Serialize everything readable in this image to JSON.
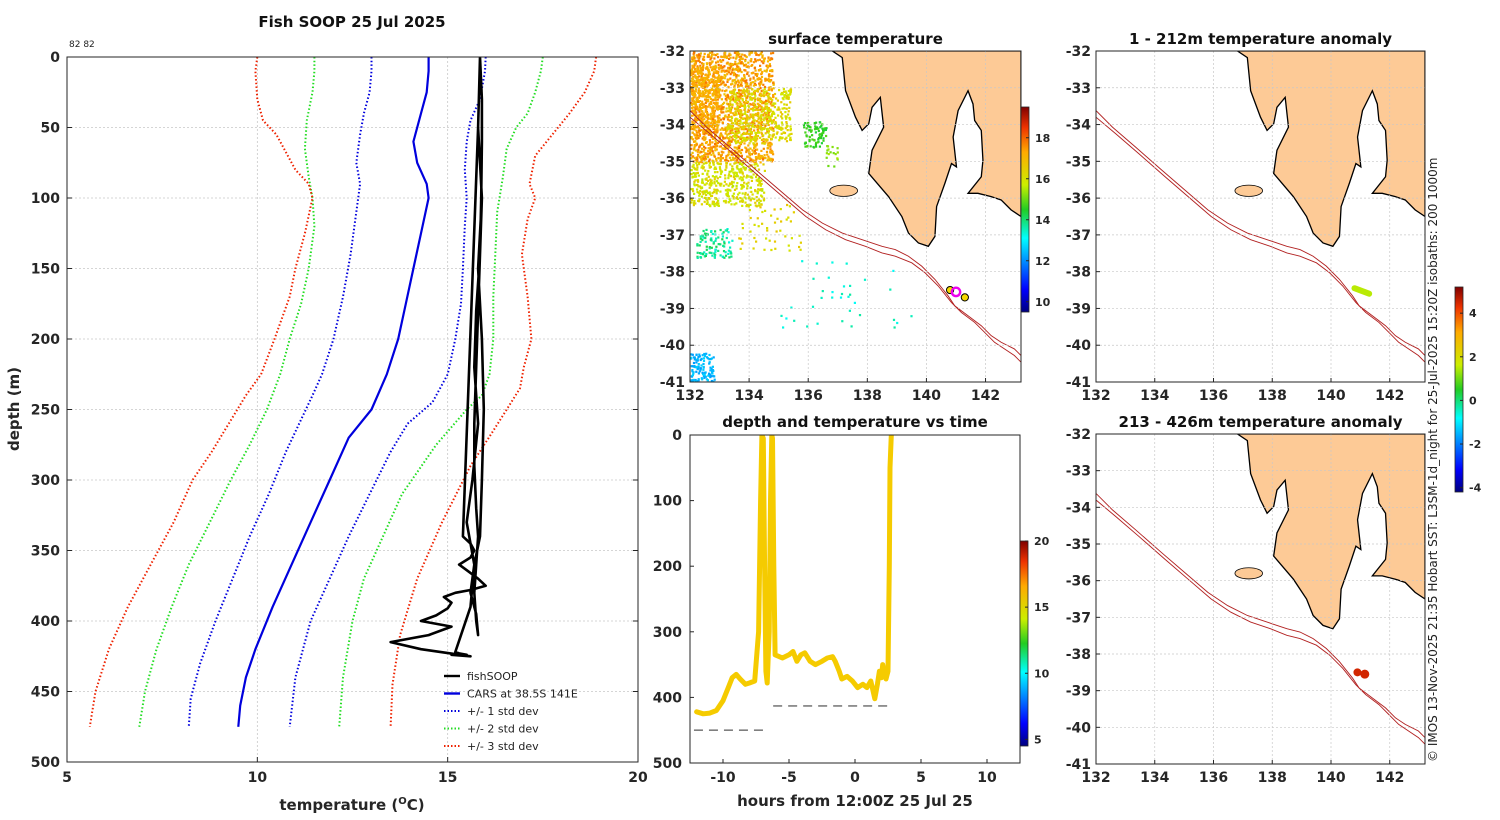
{
  "colors": {
    "land": "#fdca96",
    "coast": "#000000",
    "isobath": "#b22222",
    "grid": "#c8c8c8",
    "fish": "#000000",
    "cars": "#0000dd",
    "std1": "#0000dd",
    "std2": "#22dd22",
    "std3": "#ee2200",
    "trace": "#f5cb00",
    "dash": "#7f7f7f"
  },
  "chart_data": [
    {
      "type": "line",
      "name": "profile",
      "title": "Fish SOOP 25 Jul 2025",
      "corner_label": "82 82",
      "xlabel_main": "temperature (",
      "xlabel_sup": "O",
      "xlabel_end": "C)",
      "ylabel": "depth (m)",
      "xlim": [
        5,
        20
      ],
      "ylim": [
        500,
        0
      ],
      "xticks": [
        5,
        10,
        15,
        20
      ],
      "yticks": [
        0,
        50,
        100,
        150,
        200,
        250,
        300,
        350,
        400,
        450,
        500
      ],
      "legend": [
        "fishSOOP",
        "CARS at 38.5S 141E",
        "+/- 1 std dev",
        "+/- 2 std dev",
        "+/- 3 std dev"
      ],
      "series": [
        {
          "name": "CARS at 38.5S 141E",
          "color_key": "cars",
          "style": "solid",
          "x": [
            14.5,
            14.5,
            14.45,
            14.3,
            14.1,
            14.2,
            14.45,
            14.5,
            14.3,
            14.1,
            13.9,
            13.7,
            13.4,
            13.0,
            12.4,
            11.9,
            11.4,
            10.9,
            10.4,
            9.95,
            9.7,
            9.55,
            9.5
          ],
          "depth": [
            0,
            10,
            25,
            40,
            60,
            75,
            90,
            100,
            125,
            150,
            175,
            200,
            225,
            250,
            270,
            300,
            330,
            360,
            390,
            420,
            440,
            460,
            475
          ]
        },
        {
          "name": "cars_minus_1",
          "color_key": "std1",
          "style": "dotted",
          "x": [
            13.0,
            13.0,
            12.95,
            12.8,
            12.7,
            12.6,
            12.7,
            12.6,
            12.45,
            12.25,
            12.0,
            11.7,
            11.45,
            11.1,
            10.75,
            10.3,
            9.8,
            9.35,
            8.9,
            8.5,
            8.25,
            8.2
          ],
          "depth": [
            0,
            10,
            25,
            40,
            55,
            75,
            90,
            110,
            140,
            170,
            200,
            225,
            240,
            260,
            280,
            310,
            340,
            370,
            400,
            430,
            455,
            475
          ]
        },
        {
          "name": "cars_plus_1",
          "color_key": "std1",
          "style": "dotted",
          "x": [
            16.0,
            15.98,
            15.85,
            15.6,
            15.5,
            15.45,
            15.5,
            15.45,
            15.4,
            15.35,
            15.2,
            15.0,
            14.6,
            13.95,
            13.5,
            12.95,
            12.4,
            11.9,
            11.4,
            11.0,
            10.85
          ],
          "depth": [
            0,
            10,
            30,
            45,
            60,
            80,
            100,
            120,
            150,
            175,
            200,
            225,
            245,
            260,
            280,
            310,
            340,
            370,
            400,
            440,
            475
          ]
        },
        {
          "name": "cars_minus_2",
          "color_key": "std2",
          "style": "dotted",
          "x": [
            11.5,
            11.5,
            11.45,
            11.3,
            11.25,
            11.35,
            11.45,
            11.5,
            11.35,
            11.15,
            10.85,
            10.6,
            10.25,
            9.8,
            9.3,
            8.75,
            8.2,
            7.75,
            7.35,
            7.05,
            6.9
          ],
          "depth": [
            0,
            10,
            25,
            45,
            65,
            85,
            100,
            120,
            150,
            175,
            200,
            225,
            250,
            275,
            300,
            330,
            360,
            390,
            420,
            450,
            475
          ]
        },
        {
          "name": "cars_plus_2",
          "color_key": "std2",
          "style": "dotted",
          "x": [
            17.5,
            17.45,
            17.3,
            17.1,
            16.8,
            16.55,
            16.45,
            16.3,
            16.25,
            16.2,
            16.2,
            16.1,
            15.9,
            15.5,
            14.7,
            13.8,
            13.3,
            12.8,
            12.5,
            12.25,
            12.15
          ],
          "depth": [
            0,
            10,
            25,
            40,
            50,
            65,
            85,
            110,
            140,
            170,
            200,
            225,
            240,
            250,
            275,
            310,
            340,
            370,
            400,
            440,
            475
          ]
        },
        {
          "name": "cars_minus_3",
          "color_key": "std3",
          "style": "dotted",
          "x": [
            10.0,
            9.95,
            10.0,
            10.15,
            10.5,
            10.8,
            11.0,
            11.35,
            11.45,
            11.25,
            11.0,
            10.85,
            10.45,
            10.1,
            9.7,
            9.25,
            8.8,
            8.3,
            7.8,
            7.2,
            6.6,
            6.1,
            5.75,
            5.6
          ],
          "depth": [
            0,
            10,
            30,
            45,
            55,
            70,
            80,
            90,
            100,
            125,
            150,
            170,
            200,
            225,
            240,
            260,
            280,
            300,
            330,
            360,
            390,
            420,
            450,
            475
          ]
        },
        {
          "name": "cars_plus_3",
          "color_key": "std3",
          "style": "dotted",
          "x": [
            18.9,
            18.85,
            18.6,
            18.2,
            17.75,
            17.3,
            17.15,
            17.3,
            17.1,
            16.95,
            17.1,
            17.2,
            17.0,
            16.9,
            16.55,
            16.2,
            15.6,
            14.85,
            14.2,
            13.75,
            13.55,
            13.5
          ],
          "depth": [
            0,
            10,
            25,
            40,
            55,
            70,
            90,
            100,
            115,
            140,
            170,
            200,
            220,
            235,
            250,
            265,
            290,
            330,
            370,
            410,
            445,
            475
          ]
        },
        {
          "name": "fishSOOP",
          "color_key": "fish",
          "style": "solid",
          "x": [
            15.85,
            15.9,
            15.9,
            15.88,
            15.85,
            15.8,
            15.75,
            15.7,
            15.7,
            15.75,
            15.8,
            15.75,
            15.7,
            15.75,
            15.8,
            15.75,
            15.6,
            15.7,
            15.85,
            15.9,
            15.95,
            15.9,
            15.8,
            15.9,
            15.8,
            15.4,
            15.6,
            15.7,
            15.6,
            15.3,
            15.55,
            15.8,
            16.0,
            15.6,
            15.2,
            14.9,
            15.1,
            15.0,
            14.7,
            14.3,
            15.1,
            14.5,
            13.5,
            14.3,
            15.6,
            15.1,
            15.5,
            15.3,
            15.2,
            15.6,
            15.7,
            15.5,
            15.65,
            15.8,
            15.7,
            15.75,
            15.85,
            15.9,
            15.8,
            15.85
          ],
          "depth": [
            0,
            30,
            60,
            100,
            140,
            180,
            220,
            260,
            290,
            320,
            340,
            360,
            380,
            400,
            410,
            395,
            380,
            360,
            340,
            300,
            250,
            200,
            150,
            100,
            50,
            340,
            345,
            350,
            355,
            360,
            365,
            370,
            375,
            378,
            380,
            383,
            387,
            391,
            396,
            400,
            404,
            410,
            415,
            420,
            425,
            424,
            424,
            423,
            422,
            390,
            360,
            330,
            300,
            260,
            220,
            180,
            140,
            100,
            50,
            0
          ]
        }
      ]
    },
    {
      "type": "heatmap",
      "name": "surface-temperature-map",
      "title": "surface temperature",
      "xlim": [
        132,
        143.2
      ],
      "ylim": [
        -41,
        -32
      ],
      "xticks": [
        132,
        134,
        136,
        138,
        140,
        142
      ],
      "yticks": [
        -32,
        -33,
        -34,
        -35,
        -36,
        -37,
        -38,
        -39,
        -40,
        -41
      ],
      "colorbar": {
        "range": [
          9.5,
          19.5
        ],
        "ticks": [
          10,
          12,
          14,
          16,
          18
        ]
      },
      "markers": [
        {
          "lon": 140.8,
          "lat": -38.5,
          "label": "start"
        },
        {
          "lon": 141.0,
          "lat": -38.55,
          "label": "position"
        },
        {
          "lon": 141.3,
          "lat": -38.7,
          "label": "end"
        }
      ]
    },
    {
      "type": "line",
      "name": "depth-time",
      "title": "depth and temperature vs time",
      "xlabel": "hours from 12:00Z 25 Jul 25",
      "xlim": [
        -12.5,
        12.5
      ],
      "ylim": [
        500,
        0
      ],
      "xticks": [
        -10,
        -5,
        0,
        5,
        10
      ],
      "yticks": [
        0,
        100,
        200,
        300,
        400,
        500
      ],
      "colorbar": {
        "range": [
          4.5,
          20
        ],
        "ticks": [
          5,
          10,
          15,
          20
        ]
      },
      "bottom_lines": [
        {
          "x": [
            -12.2,
            -6.8
          ],
          "depth": 450
        },
        {
          "x": [
            -6.2,
            2.8
          ],
          "depth": 413
        }
      ],
      "trace": {
        "hours": [
          -12.0,
          -11.5,
          -11.0,
          -10.5,
          -10.0,
          -9.6,
          -9.3,
          -9.0,
          -8.7,
          -8.3,
          -8.0,
          -7.6,
          -7.3,
          -7.15,
          -7.05,
          -6.95,
          -6.85,
          -6.75,
          -6.65,
          -6.5,
          -6.4,
          -6.3,
          -6.25,
          -6.15,
          -6.05,
          -5.5,
          -5.0,
          -4.7,
          -4.4,
          -4.1,
          -3.8,
          -3.4,
          -3.0,
          -2.5,
          -2.1,
          -1.7,
          -1.5,
          -1.2,
          -1.0,
          -0.6,
          -0.2,
          0.2,
          0.6,
          0.9,
          1.2,
          1.5,
          1.7,
          1.85,
          2.0,
          2.1,
          2.25,
          2.35,
          2.5,
          2.6,
          2.65,
          2.75
        ],
        "depth": [
          422,
          425,
          424,
          420,
          405,
          385,
          370,
          365,
          372,
          380,
          378,
          375,
          300,
          100,
          0,
          5,
          200,
          360,
          378,
          300,
          100,
          0,
          5,
          200,
          335,
          340,
          335,
          330,
          345,
          335,
          332,
          345,
          350,
          345,
          340,
          338,
          345,
          360,
          372,
          368,
          375,
          385,
          380,
          385,
          375,
          402,
          380,
          360,
          370,
          350,
          365,
          372,
          360,
          200,
          50,
          0
        ]
      }
    },
    {
      "type": "heatmap",
      "name": "anomaly-shallow-map",
      "title": "1 - 212m temperature anomaly",
      "xlim": [
        132,
        143.2
      ],
      "ylim": [
        -41,
        -32
      ],
      "xticks": [
        132,
        134,
        136,
        138,
        140,
        142
      ],
      "yticks": [
        -32,
        -33,
        -34,
        -35,
        -36,
        -37,
        -38,
        -39,
        -40,
        -41
      ],
      "colorbar": {
        "range": [
          -4.2,
          5.2
        ],
        "ticks": [
          -4,
          -2,
          0,
          2,
          4
        ]
      },
      "track": {
        "lon": [
          140.8,
          141.3
        ],
        "lat": [
          -38.45,
          -38.6
        ],
        "anomaly": 1.5
      }
    },
    {
      "type": "heatmap",
      "name": "anomaly-deep-map",
      "title": "213 - 426m temperature anomaly",
      "xlim": [
        132,
        143.2
      ],
      "ylim": [
        -41,
        -32
      ],
      "xticks": [
        132,
        134,
        136,
        138,
        140,
        142
      ],
      "yticks": [
        -32,
        -33,
        -34,
        -35,
        -36,
        -37,
        -38,
        -39,
        -40,
        -41
      ],
      "track": {
        "lon": [
          140.9,
          141.15
        ],
        "lat": [
          -38.5,
          -38.55
        ],
        "anomaly": 4.5
      }
    }
  ],
  "side_caption": "© IMOS 13-Nov-2025 21:35 Hobart SST: L3SM-1d_night for 25-Jul-2025 15:20Z isobaths: 200  1000m"
}
